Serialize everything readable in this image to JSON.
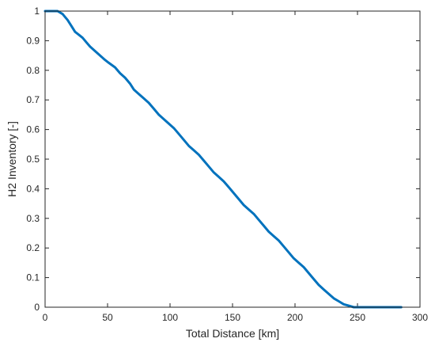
{
  "chart_data": {
    "type": "line",
    "xlabel": "Total Distance [km]",
    "ylabel": "H2 Inventory [-]",
    "xlim": [
      0,
      300
    ],
    "ylim": [
      0,
      1
    ],
    "xticks": [
      0,
      50,
      100,
      150,
      200,
      250,
      300
    ],
    "yticks": [
      0,
      0.1,
      0.2,
      0.3,
      0.4,
      0.5,
      0.6,
      0.7,
      0.8,
      0.9,
      1
    ],
    "grid": false,
    "colors": {
      "series": "#0072BD",
      "axes": "#262626"
    },
    "series": [
      {
        "x": [
          0,
          10,
          14,
          18,
          21,
          24,
          27,
          30,
          33,
          36,
          40,
          44,
          48,
          51,
          56,
          60,
          64,
          68,
          71,
          75,
          79,
          83,
          87,
          91,
          95,
          99,
          103,
          107,
          111,
          115,
          119,
          123,
          127,
          131,
          135,
          139,
          143,
          147,
          151,
          155,
          159,
          163,
          167,
          171,
          175,
          179,
          183,
          187,
          191,
          195,
          199,
          203,
          207,
          211,
          215,
          219,
          223,
          227,
          231,
          235,
          239,
          243,
          247,
          250,
          254,
          285
        ],
        "y": [
          1.0,
          1.0,
          0.99,
          0.97,
          0.95,
          0.93,
          0.92,
          0.91,
          0.895,
          0.88,
          0.865,
          0.85,
          0.835,
          0.825,
          0.81,
          0.79,
          0.775,
          0.755,
          0.735,
          0.72,
          0.705,
          0.69,
          0.67,
          0.65,
          0.635,
          0.62,
          0.605,
          0.585,
          0.565,
          0.545,
          0.53,
          0.515,
          0.495,
          0.475,
          0.455,
          0.44,
          0.425,
          0.405,
          0.385,
          0.365,
          0.345,
          0.33,
          0.315,
          0.295,
          0.275,
          0.255,
          0.24,
          0.225,
          0.205,
          0.185,
          0.165,
          0.15,
          0.135,
          0.115,
          0.095,
          0.075,
          0.06,
          0.045,
          0.03,
          0.02,
          0.01,
          0.005,
          0.0,
          0.0,
          0.0,
          0.0
        ]
      }
    ]
  }
}
